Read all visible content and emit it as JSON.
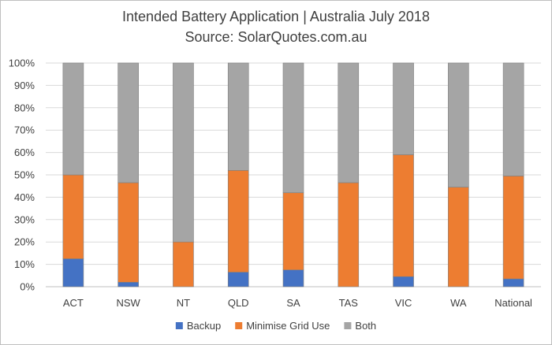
{
  "chart_data": {
    "type": "bar",
    "stacked": true,
    "title": "Intended Battery Application | Australia July 2018",
    "subtitle": "Source: SolarQuotes.com.au",
    "categories": [
      "ACT",
      "NSW",
      "NT",
      "QLD",
      "SA",
      "TAS",
      "VIC",
      "WA",
      "National"
    ],
    "series": [
      {
        "name": "Backup",
        "color": "#4472c4",
        "values": [
          12.5,
          2,
          0,
          6.5,
          7.5,
          0,
          4.5,
          0,
          3.5
        ]
      },
      {
        "name": "Minimise Grid Use",
        "color": "#ed7d31",
        "values": [
          37.5,
          44.5,
          20,
          45.5,
          34.5,
          46.5,
          54.5,
          44.5,
          46
        ]
      },
      {
        "name": "Both",
        "color": "#a5a5a5",
        "values": [
          50,
          53.5,
          80,
          48,
          58,
          53.5,
          41,
          55.5,
          50.5
        ]
      }
    ],
    "y_ticks": [
      "0%",
      "10%",
      "20%",
      "30%",
      "40%",
      "50%",
      "60%",
      "70%",
      "80%",
      "90%",
      "100%"
    ],
    "ylim": [
      0,
      100
    ],
    "grid": true,
    "legend_position": "bottom"
  }
}
